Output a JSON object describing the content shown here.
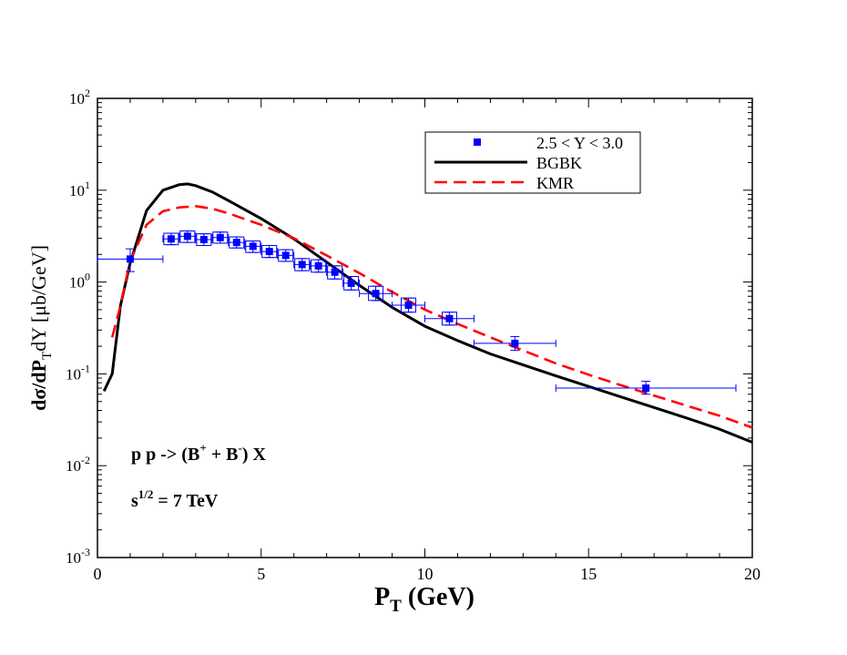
{
  "chart_data": {
    "type": "scatter",
    "scale": {
      "x": "linear",
      "y": "log10"
    },
    "xlim": [
      0,
      20
    ],
    "ylim_exponents": [
      -3,
      2
    ],
    "x_ticks": [
      {
        "value": 0,
        "label": "0"
      },
      {
        "value": 5,
        "label": "5"
      },
      {
        "value": 10,
        "label": "10"
      },
      {
        "value": 15,
        "label": "15"
      },
      {
        "value": 20,
        "label": "20"
      }
    ],
    "y_ticks": [
      {
        "exp": 2,
        "base": "10",
        "sup": "2"
      },
      {
        "exp": 1,
        "base": "10",
        "sup": "1"
      },
      {
        "exp": 0,
        "base": "10",
        "sup": "0"
      },
      {
        "exp": -1,
        "base": "10",
        "sup": "-1"
      },
      {
        "exp": -2,
        "base": "10",
        "sup": "-2"
      },
      {
        "exp": -3,
        "base": "10",
        "sup": "-3"
      }
    ],
    "xlabel": {
      "main": "P",
      "sub": "T",
      "rest": " (GeV)"
    },
    "ylabel": {
      "a": "dσ/dP",
      "b": "T",
      "c": "dY [μb/GeV]"
    },
    "annotations": {
      "process": {
        "a": "p p -> (B",
        "sup1": "+",
        "b": " + B",
        "sup2": "-",
        "c": ") X"
      },
      "energy": {
        "a": "s",
        "sup": "1/2",
        "b": " = 7 TeV"
      }
    },
    "legend": {
      "placement": "top-right",
      "entries": [
        {
          "label": "2.5 < Y < 3.0",
          "style": "square-marker",
          "color": "#0000ff"
        },
        {
          "label": "BGBK",
          "style": "solid",
          "color": "#000000"
        },
        {
          "label": "KMR",
          "style": "dashed",
          "color": "#ff0000"
        }
      ]
    },
    "series": [
      {
        "name": "2.5 < Y < 3.0",
        "kind": "points",
        "color": "#0000ff",
        "points": [
          {
            "x": 1.0,
            "y": 1.78,
            "xlo": 0.0,
            "xhi": 2.0,
            "ylo": 1.3,
            "yhi": 2.3
          },
          {
            "x": 2.25,
            "y": 2.95,
            "xlo": 2.0,
            "xhi": 2.5,
            "ylo": 2.55,
            "yhi": 3.4,
            "box": true
          },
          {
            "x": 2.75,
            "y": 3.15,
            "xlo": 2.5,
            "xhi": 3.0,
            "ylo": 2.7,
            "yhi": 3.6,
            "box": true
          },
          {
            "x": 3.25,
            "y": 2.9,
            "xlo": 3.0,
            "xhi": 3.5,
            "ylo": 2.5,
            "yhi": 3.35,
            "box": true
          },
          {
            "x": 3.75,
            "y": 3.05,
            "xlo": 3.5,
            "xhi": 4.0,
            "ylo": 2.65,
            "yhi": 3.5,
            "box": true
          },
          {
            "x": 4.25,
            "y": 2.7,
            "xlo": 4.0,
            "xhi": 4.5,
            "ylo": 2.35,
            "yhi": 3.1,
            "box": true
          },
          {
            "x": 4.75,
            "y": 2.45,
            "xlo": 4.5,
            "xhi": 5.0,
            "ylo": 2.1,
            "yhi": 2.8,
            "box": true
          },
          {
            "x": 5.25,
            "y": 2.15,
            "xlo": 5.0,
            "xhi": 5.5,
            "ylo": 1.85,
            "yhi": 2.5,
            "box": true
          },
          {
            "x": 5.75,
            "y": 1.95,
            "xlo": 5.5,
            "xhi": 6.0,
            "ylo": 1.68,
            "yhi": 2.25,
            "box": true
          },
          {
            "x": 6.25,
            "y": 1.55,
            "xlo": 6.0,
            "xhi": 6.5,
            "ylo": 1.33,
            "yhi": 1.8,
            "box": true
          },
          {
            "x": 6.75,
            "y": 1.5,
            "xlo": 6.5,
            "xhi": 7.0,
            "ylo": 1.28,
            "yhi": 1.75,
            "box": true
          },
          {
            "x": 7.25,
            "y": 1.28,
            "xlo": 7.0,
            "xhi": 7.5,
            "ylo": 1.08,
            "yhi": 1.5,
            "box": true
          },
          {
            "x": 7.75,
            "y": 0.97,
            "xlo": 7.5,
            "xhi": 8.0,
            "ylo": 0.82,
            "yhi": 1.15,
            "box": true
          },
          {
            "x": 8.5,
            "y": 0.75,
            "xlo": 8.0,
            "xhi": 9.0,
            "ylo": 0.63,
            "yhi": 0.9,
            "box": true
          },
          {
            "x": 9.5,
            "y": 0.56,
            "xlo": 9.0,
            "xhi": 10.0,
            "ylo": 0.47,
            "yhi": 0.67,
            "box": true
          },
          {
            "x": 10.75,
            "y": 0.4,
            "xlo": 10.0,
            "xhi": 11.5,
            "ylo": 0.34,
            "yhi": 0.47,
            "box": true
          },
          {
            "x": 12.75,
            "y": 0.215,
            "xlo": 11.5,
            "xhi": 14.0,
            "ylo": 0.18,
            "yhi": 0.255
          },
          {
            "x": 16.75,
            "y": 0.07,
            "xlo": 14.0,
            "xhi": 19.5,
            "ylo": 0.06,
            "yhi": 0.083
          }
        ]
      },
      {
        "name": "BGBK",
        "kind": "line",
        "style": "solid",
        "color": "#000000",
        "x": [
          0.2,
          0.45,
          0.7,
          1.0,
          1.5,
          2.0,
          2.5,
          2.75,
          3.0,
          3.5,
          4.0,
          5.0,
          6.0,
          7.0,
          8.0,
          9.0,
          10.0,
          11.0,
          12.0,
          13.0,
          14.0,
          15.0,
          16.0,
          17.0,
          18.0,
          19.0,
          20.0
        ],
        "y": [
          0.065,
          0.1,
          0.55,
          1.6,
          6.0,
          10.0,
          11.5,
          11.7,
          11.2,
          9.6,
          7.7,
          4.9,
          2.95,
          1.65,
          0.92,
          0.53,
          0.33,
          0.23,
          0.165,
          0.125,
          0.095,
          0.073,
          0.056,
          0.043,
          0.033,
          0.025,
          0.018
        ]
      },
      {
        "name": "KMR",
        "kind": "line",
        "style": "dashed",
        "color": "#ff0000",
        "x": [
          0.45,
          0.7,
          1.0,
          1.5,
          2.0,
          2.5,
          3.0,
          3.5,
          4.0,
          5.0,
          6.0,
          7.0,
          8.0,
          9.0,
          10.0,
          11.0,
          12.0,
          13.0,
          14.0,
          15.0,
          16.0,
          17.0,
          18.0,
          19.0,
          20.0
        ],
        "y": [
          0.25,
          0.55,
          1.7,
          4.2,
          5.9,
          6.5,
          6.7,
          6.3,
          5.6,
          4.2,
          3.0,
          1.95,
          1.25,
          0.78,
          0.5,
          0.35,
          0.25,
          0.18,
          0.13,
          0.098,
          0.075,
          0.058,
          0.045,
          0.035,
          0.026
        ]
      }
    ]
  }
}
